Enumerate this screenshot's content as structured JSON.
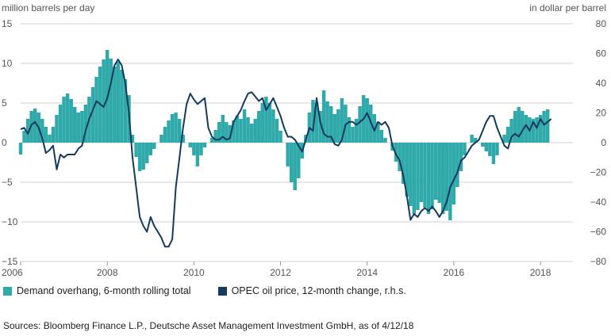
{
  "chart_data": {
    "type": "bar+line",
    "left_axis_label": "million barrels per day",
    "right_axis_label": "in dollar per barrel",
    "left_ylim": [
      -15,
      15
    ],
    "right_ylim": [
      -80,
      80
    ],
    "xlim": [
      2006.0,
      2018.75
    ],
    "left_ticks": [
      "15",
      "10",
      "5",
      "0",
      "−5",
      "−10",
      "−15"
    ],
    "right_ticks": [
      "80",
      "60",
      "40",
      "20",
      "0",
      "−20",
      "−40",
      "−60",
      "−80"
    ],
    "x_ticks": [
      "2006",
      "2008",
      "2010",
      "2012",
      "2014",
      "2016",
      "2018"
    ],
    "grid": true,
    "legend_position": "bottom",
    "colors": {
      "bars": "#2fa9a9",
      "line": "#143b5e",
      "grid": "#d0d0d0"
    },
    "series": [
      {
        "name": "Demand overhang, 6-month rolling total",
        "kind": "bar",
        "x": [
          2006.0,
          2006.083,
          2006.167,
          2006.25,
          2006.333,
          2006.417,
          2006.5,
          2006.583,
          2006.667,
          2006.75,
          2006.833,
          2006.917,
          2007.0,
          2007.083,
          2007.167,
          2007.25,
          2007.333,
          2007.417,
          2007.5,
          2007.583,
          2007.667,
          2007.75,
          2007.833,
          2007.917,
          2008.0,
          2008.083,
          2008.167,
          2008.25,
          2008.333,
          2008.417,
          2008.5,
          2008.583,
          2008.667,
          2008.75,
          2008.833,
          2008.917,
          2009.0,
          2009.083,
          2009.167,
          2009.25,
          2009.333,
          2009.417,
          2009.5,
          2009.583,
          2009.667,
          2009.75,
          2009.833,
          2009.917,
          2010.0,
          2010.083,
          2010.167,
          2010.25,
          2010.333,
          2010.417,
          2010.5,
          2010.583,
          2010.667,
          2010.75,
          2010.833,
          2010.917,
          2011.0,
          2011.083,
          2011.167,
          2011.25,
          2011.333,
          2011.417,
          2011.5,
          2011.583,
          2011.667,
          2011.75,
          2011.833,
          2011.917,
          2012.0,
          2012.083,
          2012.167,
          2012.25,
          2012.333,
          2012.417,
          2012.5,
          2012.583,
          2012.667,
          2012.75,
          2012.833,
          2012.917,
          2013.0,
          2013.083,
          2013.167,
          2013.25,
          2013.333,
          2013.417,
          2013.5,
          2013.583,
          2013.667,
          2013.75,
          2013.833,
          2013.917,
          2014.0,
          2014.083,
          2014.167,
          2014.25,
          2014.333,
          2014.417,
          2014.5,
          2014.583,
          2014.667,
          2014.75,
          2014.833,
          2014.917,
          2015.0,
          2015.083,
          2015.167,
          2015.25,
          2015.333,
          2015.417,
          2015.5,
          2015.583,
          2015.667,
          2015.75,
          2015.833,
          2015.917,
          2016.0,
          2016.083,
          2016.167,
          2016.25,
          2016.333,
          2016.417,
          2016.5,
          2016.583,
          2016.667,
          2016.75,
          2016.833,
          2016.917,
          2017.0,
          2017.083,
          2017.167,
          2017.25,
          2017.333,
          2017.417,
          2017.5,
          2017.583,
          2017.667,
          2017.75,
          2017.833,
          2017.917,
          2018.0,
          2018.083,
          2018.167
        ],
        "values": [
          -1.5,
          1.5,
          3.0,
          4.0,
          4.3,
          3.8,
          3.0,
          2.0,
          1.0,
          2.0,
          3.5,
          4.8,
          5.8,
          6.2,
          5.5,
          4.5,
          3.8,
          4.0,
          4.8,
          5.8,
          7.0,
          8.3,
          9.6,
          10.5,
          11.7,
          10.6,
          9.6,
          10.2,
          9.2,
          8.0,
          6.0,
          1.0,
          -1.8,
          -3.6,
          -3.4,
          -2.6,
          -1.6,
          -0.8,
          0.0,
          1.0,
          2.0,
          2.8,
          3.6,
          3.8,
          3.0,
          1.0,
          0.0,
          -0.6,
          -1.6,
          -3.0,
          -1.6,
          -0.6,
          0.0,
          0.6,
          1.6,
          2.6,
          3.5,
          2.6,
          2.2,
          2.8,
          3.4,
          3.0,
          4.2,
          3.2,
          2.4,
          3.0,
          4.0,
          5.0,
          5.8,
          5.0,
          4.2,
          3.0,
          1.5,
          0.0,
          -3.0,
          -5.0,
          -6.0,
          -4.5,
          -2.0,
          1.0,
          3.8,
          5.4,
          5.0,
          4.0,
          6.6,
          5.2,
          4.6,
          3.6,
          4.2,
          5.6,
          4.8,
          3.2,
          2.0,
          3.0,
          4.6,
          6.0,
          5.6,
          4.8,
          3.6,
          2.6,
          1.6,
          0.6,
          0.0,
          -1.0,
          -2.4,
          -3.6,
          -5.2,
          -6.8,
          -8.0,
          -9.0,
          -8.5,
          -7.5,
          -8.2,
          -9.0,
          -8.4,
          -7.2,
          -7.6,
          -9.0,
          -8.6,
          -9.8,
          -7.8,
          -5.6,
          -3.6,
          -1.6,
          0.0,
          1.0,
          0.6,
          0.0,
          -0.5,
          -1.1,
          -1.7,
          -2.7,
          -1.6,
          0.0,
          1.0,
          2.0,
          3.0,
          4.0,
          4.5,
          4.0,
          3.5,
          3.2,
          3.0,
          3.2,
          3.5,
          4.0,
          4.2
        ]
      },
      {
        "name": "OPEC oil price, 12-month change, r.h.s.",
        "kind": "line",
        "axis": "right",
        "points": [
          [
            2006.0,
            9
          ],
          [
            2006.083,
            10
          ],
          [
            2006.167,
            6
          ],
          [
            2006.25,
            12
          ],
          [
            2006.333,
            14
          ],
          [
            2006.417,
            10
          ],
          [
            2006.5,
            3
          ],
          [
            2006.583,
            -7
          ],
          [
            2006.667,
            -5
          ],
          [
            2006.75,
            -2
          ],
          [
            2006.833,
            -18
          ],
          [
            2006.917,
            -8
          ],
          [
            2007.0,
            -10
          ],
          [
            2007.083,
            -8
          ],
          [
            2007.167,
            -8
          ],
          [
            2007.25,
            -8
          ],
          [
            2007.333,
            -4
          ],
          [
            2007.417,
            -2
          ],
          [
            2007.5,
            8
          ],
          [
            2007.583,
            16
          ],
          [
            2007.667,
            22
          ],
          [
            2007.75,
            28
          ],
          [
            2007.833,
            26
          ],
          [
            2007.917,
            24
          ],
          [
            2008.0,
            30
          ],
          [
            2008.083,
            40
          ],
          [
            2008.167,
            52
          ],
          [
            2008.25,
            56
          ],
          [
            2008.333,
            52
          ],
          [
            2008.417,
            40
          ],
          [
            2008.5,
            20
          ],
          [
            2008.583,
            -10
          ],
          [
            2008.667,
            -30
          ],
          [
            2008.75,
            -50
          ],
          [
            2008.833,
            -56
          ],
          [
            2008.917,
            -60
          ],
          [
            2009.0,
            -50
          ],
          [
            2009.083,
            -56
          ],
          [
            2009.167,
            -60
          ],
          [
            2009.25,
            -64
          ],
          [
            2009.333,
            -70
          ],
          [
            2009.417,
            -70
          ],
          [
            2009.5,
            -65
          ],
          [
            2009.583,
            -30
          ],
          [
            2009.667,
            -10
          ],
          [
            2009.75,
            10
          ],
          [
            2009.833,
            26
          ],
          [
            2009.917,
            33
          ],
          [
            2010.0,
            29
          ],
          [
            2010.083,
            26
          ],
          [
            2010.167,
            28
          ],
          [
            2010.25,
            30
          ],
          [
            2010.333,
            10
          ],
          [
            2010.417,
            4
          ],
          [
            2010.5,
            2
          ],
          [
            2010.583,
            2
          ],
          [
            2010.667,
            4
          ],
          [
            2010.75,
            2
          ],
          [
            2010.833,
            3
          ],
          [
            2010.917,
            14
          ],
          [
            2011.0,
            18
          ],
          [
            2011.083,
            22
          ],
          [
            2011.167,
            28
          ],
          [
            2011.25,
            33
          ],
          [
            2011.333,
            34
          ],
          [
            2011.417,
            31
          ],
          [
            2011.5,
            28
          ],
          [
            2011.583,
            30
          ],
          [
            2011.667,
            22
          ],
          [
            2011.75,
            26
          ],
          [
            2011.833,
            30
          ],
          [
            2011.917,
            24
          ],
          [
            2012.0,
            18
          ],
          [
            2012.083,
            10
          ],
          [
            2012.167,
            4
          ],
          [
            2012.25,
            4
          ],
          [
            2012.333,
            2
          ],
          [
            2012.417,
            -2
          ],
          [
            2012.5,
            -6
          ],
          [
            2012.583,
            2
          ],
          [
            2012.667,
            10
          ],
          [
            2012.75,
            8
          ],
          [
            2012.833,
            30
          ],
          [
            2012.917,
            14
          ],
          [
            2013.0,
            6
          ],
          [
            2013.083,
            4
          ],
          [
            2013.167,
            4
          ],
          [
            2013.25,
            -1
          ],
          [
            2013.333,
            -2
          ],
          [
            2013.417,
            2
          ],
          [
            2013.5,
            12
          ],
          [
            2013.583,
            14
          ],
          [
            2013.667,
            14
          ],
          [
            2013.75,
            12
          ],
          [
            2013.833,
            14
          ],
          [
            2013.917,
            16
          ],
          [
            2014.0,
            20
          ],
          [
            2014.083,
            14
          ],
          [
            2014.167,
            8
          ],
          [
            2014.25,
            14
          ],
          [
            2014.333,
            12
          ],
          [
            2014.417,
            14
          ],
          [
            2014.5,
            10
          ],
          [
            2014.583,
            -2
          ],
          [
            2014.667,
            -8
          ],
          [
            2014.75,
            -12
          ],
          [
            2014.833,
            -22
          ],
          [
            2014.917,
            -36
          ],
          [
            2015.0,
            -52
          ],
          [
            2015.083,
            -48
          ],
          [
            2015.167,
            -50
          ],
          [
            2015.25,
            -46
          ],
          [
            2015.333,
            -44
          ],
          [
            2015.417,
            -46
          ],
          [
            2015.5,
            -43
          ],
          [
            2015.583,
            -46
          ],
          [
            2015.667,
            -50
          ],
          [
            2015.75,
            -46
          ],
          [
            2015.833,
            -40
          ],
          [
            2015.917,
            -30
          ],
          [
            2016.0,
            -25
          ],
          [
            2016.083,
            -20
          ],
          [
            2016.167,
            -12
          ],
          [
            2016.25,
            -10
          ],
          [
            2016.333,
            -6
          ],
          [
            2016.417,
            -2
          ],
          [
            2016.5,
            0
          ],
          [
            2016.583,
            2
          ],
          [
            2016.667,
            8
          ],
          [
            2016.75,
            14
          ],
          [
            2016.833,
            18
          ],
          [
            2016.917,
            18
          ],
          [
            2017.0,
            10
          ],
          [
            2017.083,
            4
          ],
          [
            2017.167,
            -2
          ],
          [
            2017.25,
            -4
          ],
          [
            2017.333,
            4
          ],
          [
            2017.417,
            6
          ],
          [
            2017.5,
            4
          ],
          [
            2017.583,
            8
          ],
          [
            2017.667,
            12
          ],
          [
            2017.75,
            8
          ],
          [
            2017.833,
            14
          ],
          [
            2017.917,
            10
          ],
          [
            2018.0,
            16
          ],
          [
            2018.083,
            12
          ],
          [
            2018.167,
            14
          ],
          [
            2018.25,
            16
          ]
        ]
      }
    ],
    "source": "Sources: Bloomberg Finance L.P., Deutsche Asset Management Investment GmbH, as of 4/12/18"
  }
}
